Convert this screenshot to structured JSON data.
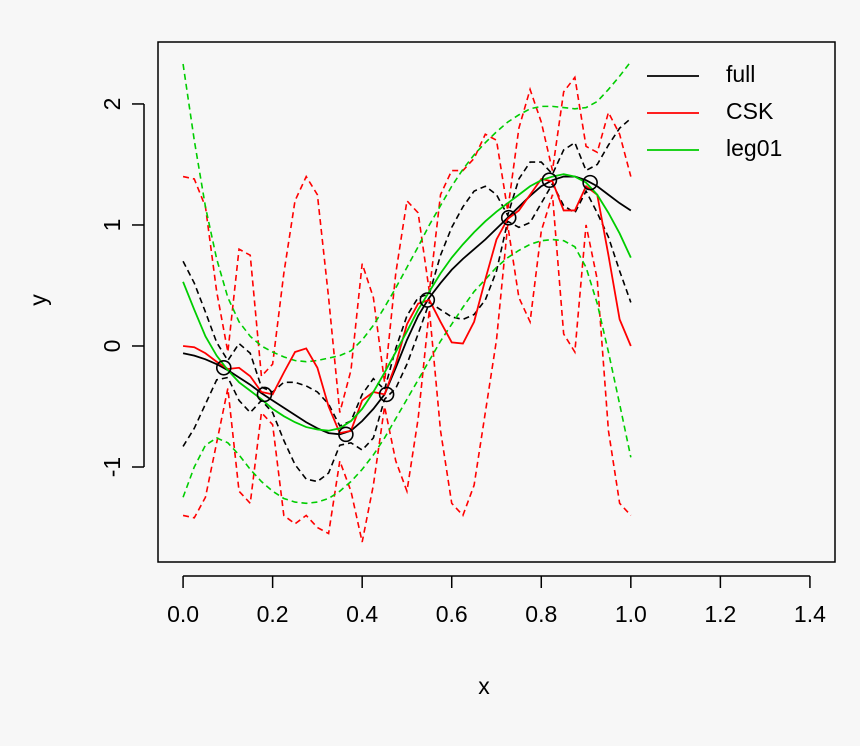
{
  "chart_data": {
    "type": "line",
    "xlabel": "x",
    "ylabel": "y",
    "xlim": [
      -0.056,
      1.456
    ],
    "ylim": [
      -1.785,
      2.512
    ],
    "xticks": [
      {
        "value": 0,
        "label": "0.0"
      },
      0.2,
      0.4,
      0.6,
      0.8,
      {
        "value": 1,
        "label": "1.0"
      },
      1.2,
      1.4
    ],
    "yticks": [
      -1,
      0,
      1,
      2
    ],
    "legend": "topright",
    "x": [
      0,
      0.025,
      0.05,
      0.075,
      0.1,
      0.125,
      0.15,
      0.175,
      0.2,
      0.225,
      0.25,
      0.275,
      0.3,
      0.325,
      0.35,
      0.375,
      0.4,
      0.425,
      0.45,
      0.475,
      0.5,
      0.525,
      0.55,
      0.575,
      0.6,
      0.625,
      0.65,
      0.675,
      0.7,
      0.725,
      0.75,
      0.775,
      0.8,
      0.825,
      0.85,
      0.875,
      0.9,
      0.925,
      0.95,
      0.975,
      1
    ],
    "series": [
      {
        "name": "full",
        "color": "#000000",
        "values": [
          -0.06,
          -0.08,
          -0.11,
          -0.15,
          -0.2,
          -0.26,
          -0.32,
          -0.39,
          -0.45,
          -0.51,
          -0.57,
          -0.63,
          -0.68,
          -0.72,
          -0.73,
          -0.7,
          -0.62,
          -0.52,
          -0.4,
          -0.18,
          0.05,
          0.25,
          0.4,
          0.52,
          0.63,
          0.72,
          0.8,
          0.88,
          0.97,
          1.06,
          1.15,
          1.24,
          1.32,
          1.37,
          1.4,
          1.4,
          1.37,
          1.32,
          1.25,
          1.18,
          1.12
        ],
        "upper": [
          0.7,
          0.52,
          0.28,
          0.03,
          -0.12,
          0.02,
          -0.06,
          -0.34,
          -0.38,
          -0.3,
          -0.3,
          -0.33,
          -0.38,
          -0.48,
          -0.66,
          -0.62,
          -0.4,
          -0.27,
          -0.36,
          -0.02,
          0.25,
          0.4,
          0.43,
          0.75,
          0.98,
          1.15,
          1.28,
          1.32,
          1.25,
          1.08,
          1.38,
          1.52,
          1.52,
          1.42,
          1.62,
          1.68,
          1.45,
          1.5,
          1.66,
          1.8,
          1.88
        ],
        "lower": [
          -0.83,
          -0.68,
          -0.48,
          -0.28,
          -0.26,
          -0.45,
          -0.55,
          -0.45,
          -0.55,
          -0.78,
          -0.98,
          -1.1,
          -1.12,
          -1.05,
          -0.82,
          -0.8,
          -0.86,
          -0.76,
          -0.44,
          -0.35,
          -0.15,
          0.1,
          0.36,
          0.3,
          0.24,
          0.22,
          0.26,
          0.38,
          0.62,
          1.03,
          0.98,
          1.02,
          1.18,
          1.34,
          1.16,
          1.1,
          1.28,
          1.1,
          0.9,
          0.62,
          0.36
        ]
      },
      {
        "name": "CSK",
        "color": "#ff0000",
        "values": [
          0,
          -0.01,
          -0.06,
          -0.13,
          -0.19,
          -0.18,
          -0.25,
          -0.38,
          -0.4,
          -0.22,
          -0.05,
          -0.02,
          -0.18,
          -0.5,
          -0.72,
          -0.7,
          -0.45,
          -0.38,
          -0.4,
          -0.15,
          0.18,
          0.35,
          0.38,
          0.2,
          0.03,
          0.02,
          0.2,
          0.55,
          0.88,
          1.05,
          1.12,
          1.25,
          1.38,
          1.36,
          1.12,
          1.12,
          1.32,
          1.25,
          0.75,
          0.22,
          0
        ],
        "upper": [
          1.4,
          1.38,
          1.15,
          0.45,
          -0.05,
          0.8,
          0.75,
          -0.25,
          -0.15,
          0.6,
          1.2,
          1.4,
          1.25,
          0.4,
          -0.55,
          -0.2,
          0.68,
          0.4,
          -0.3,
          0.6,
          1.2,
          1.1,
          0.45,
          1.25,
          1.45,
          1.45,
          1.55,
          1.75,
          1.7,
          1.12,
          1.8,
          2.12,
          1.85,
          1.45,
          2.1,
          2.22,
          1.65,
          1.6,
          1.93,
          1.75,
          1.4
        ],
        "lower": [
          -1.4,
          -1.42,
          -1.25,
          -0.8,
          -0.35,
          -1.2,
          -1.3,
          -0.55,
          -0.65,
          -1.4,
          -1.47,
          -1.4,
          -1.5,
          -1.55,
          -0.95,
          -1.2,
          -1.62,
          -1.15,
          -0.5,
          -0.95,
          -1.2,
          -0.6,
          0.3,
          -0.7,
          -1.3,
          -1.4,
          -1.15,
          -0.55,
          0.05,
          1,
          0.4,
          0.2,
          0.95,
          1.25,
          0.1,
          -0.05,
          1,
          0.55,
          -0.7,
          -1.3,
          -1.4
        ]
      },
      {
        "name": "leg01",
        "color": "#00cd00",
        "values": [
          0.53,
          0.3,
          0.08,
          -0.08,
          -0.2,
          -0.3,
          -0.37,
          -0.44,
          -0.52,
          -0.58,
          -0.63,
          -0.67,
          -0.69,
          -0.7,
          -0.68,
          -0.62,
          -0.52,
          -0.38,
          -0.22,
          -0.05,
          0.12,
          0.3,
          0.45,
          0.6,
          0.73,
          0.84,
          0.94,
          1.03,
          1.11,
          1.18,
          1.25,
          1.32,
          1.37,
          1.4,
          1.42,
          1.4,
          1.35,
          1.25,
          1.1,
          0.93,
          0.73
        ],
        "upper": [
          2.33,
          1.7,
          1.15,
          0.72,
          0.4,
          0.2,
          0.08,
          0,
          -0.05,
          -0.09,
          -0.12,
          -0.13,
          -0.12,
          -0.1,
          -0.08,
          -0.04,
          0.05,
          0.17,
          0.32,
          0.48,
          0.65,
          0.82,
          1,
          1.16,
          1.32,
          1.46,
          1.58,
          1.68,
          1.77,
          1.85,
          1.91,
          1.96,
          1.98,
          1.98,
          1.97,
          1.96,
          1.97,
          2.02,
          2.12,
          2.23,
          2.35
        ],
        "lower": [
          -1.25,
          -1,
          -0.82,
          -0.76,
          -0.8,
          -0.9,
          -1.02,
          -1.12,
          -1.2,
          -1.26,
          -1.29,
          -1.3,
          -1.29,
          -1.26,
          -1.2,
          -1.12,
          -1.02,
          -0.9,
          -0.76,
          -0.6,
          -0.44,
          -0.28,
          -0.12,
          0.04,
          0.18,
          0.32,
          0.45,
          0.55,
          0.65,
          0.73,
          0.79,
          0.84,
          0.87,
          0.88,
          0.87,
          0.82,
          0.65,
          0.35,
          -0.05,
          -0.48,
          -0.92
        ]
      }
    ],
    "points": {
      "x": [
        0.0909,
        0.1818,
        0.3636,
        0.4545,
        0.5455,
        0.7273,
        0.8182,
        0.9091
      ],
      "values": [
        -0.18,
        -0.4,
        -0.73,
        -0.4,
        0.38,
        1.06,
        1.37,
        1.35
      ]
    }
  }
}
